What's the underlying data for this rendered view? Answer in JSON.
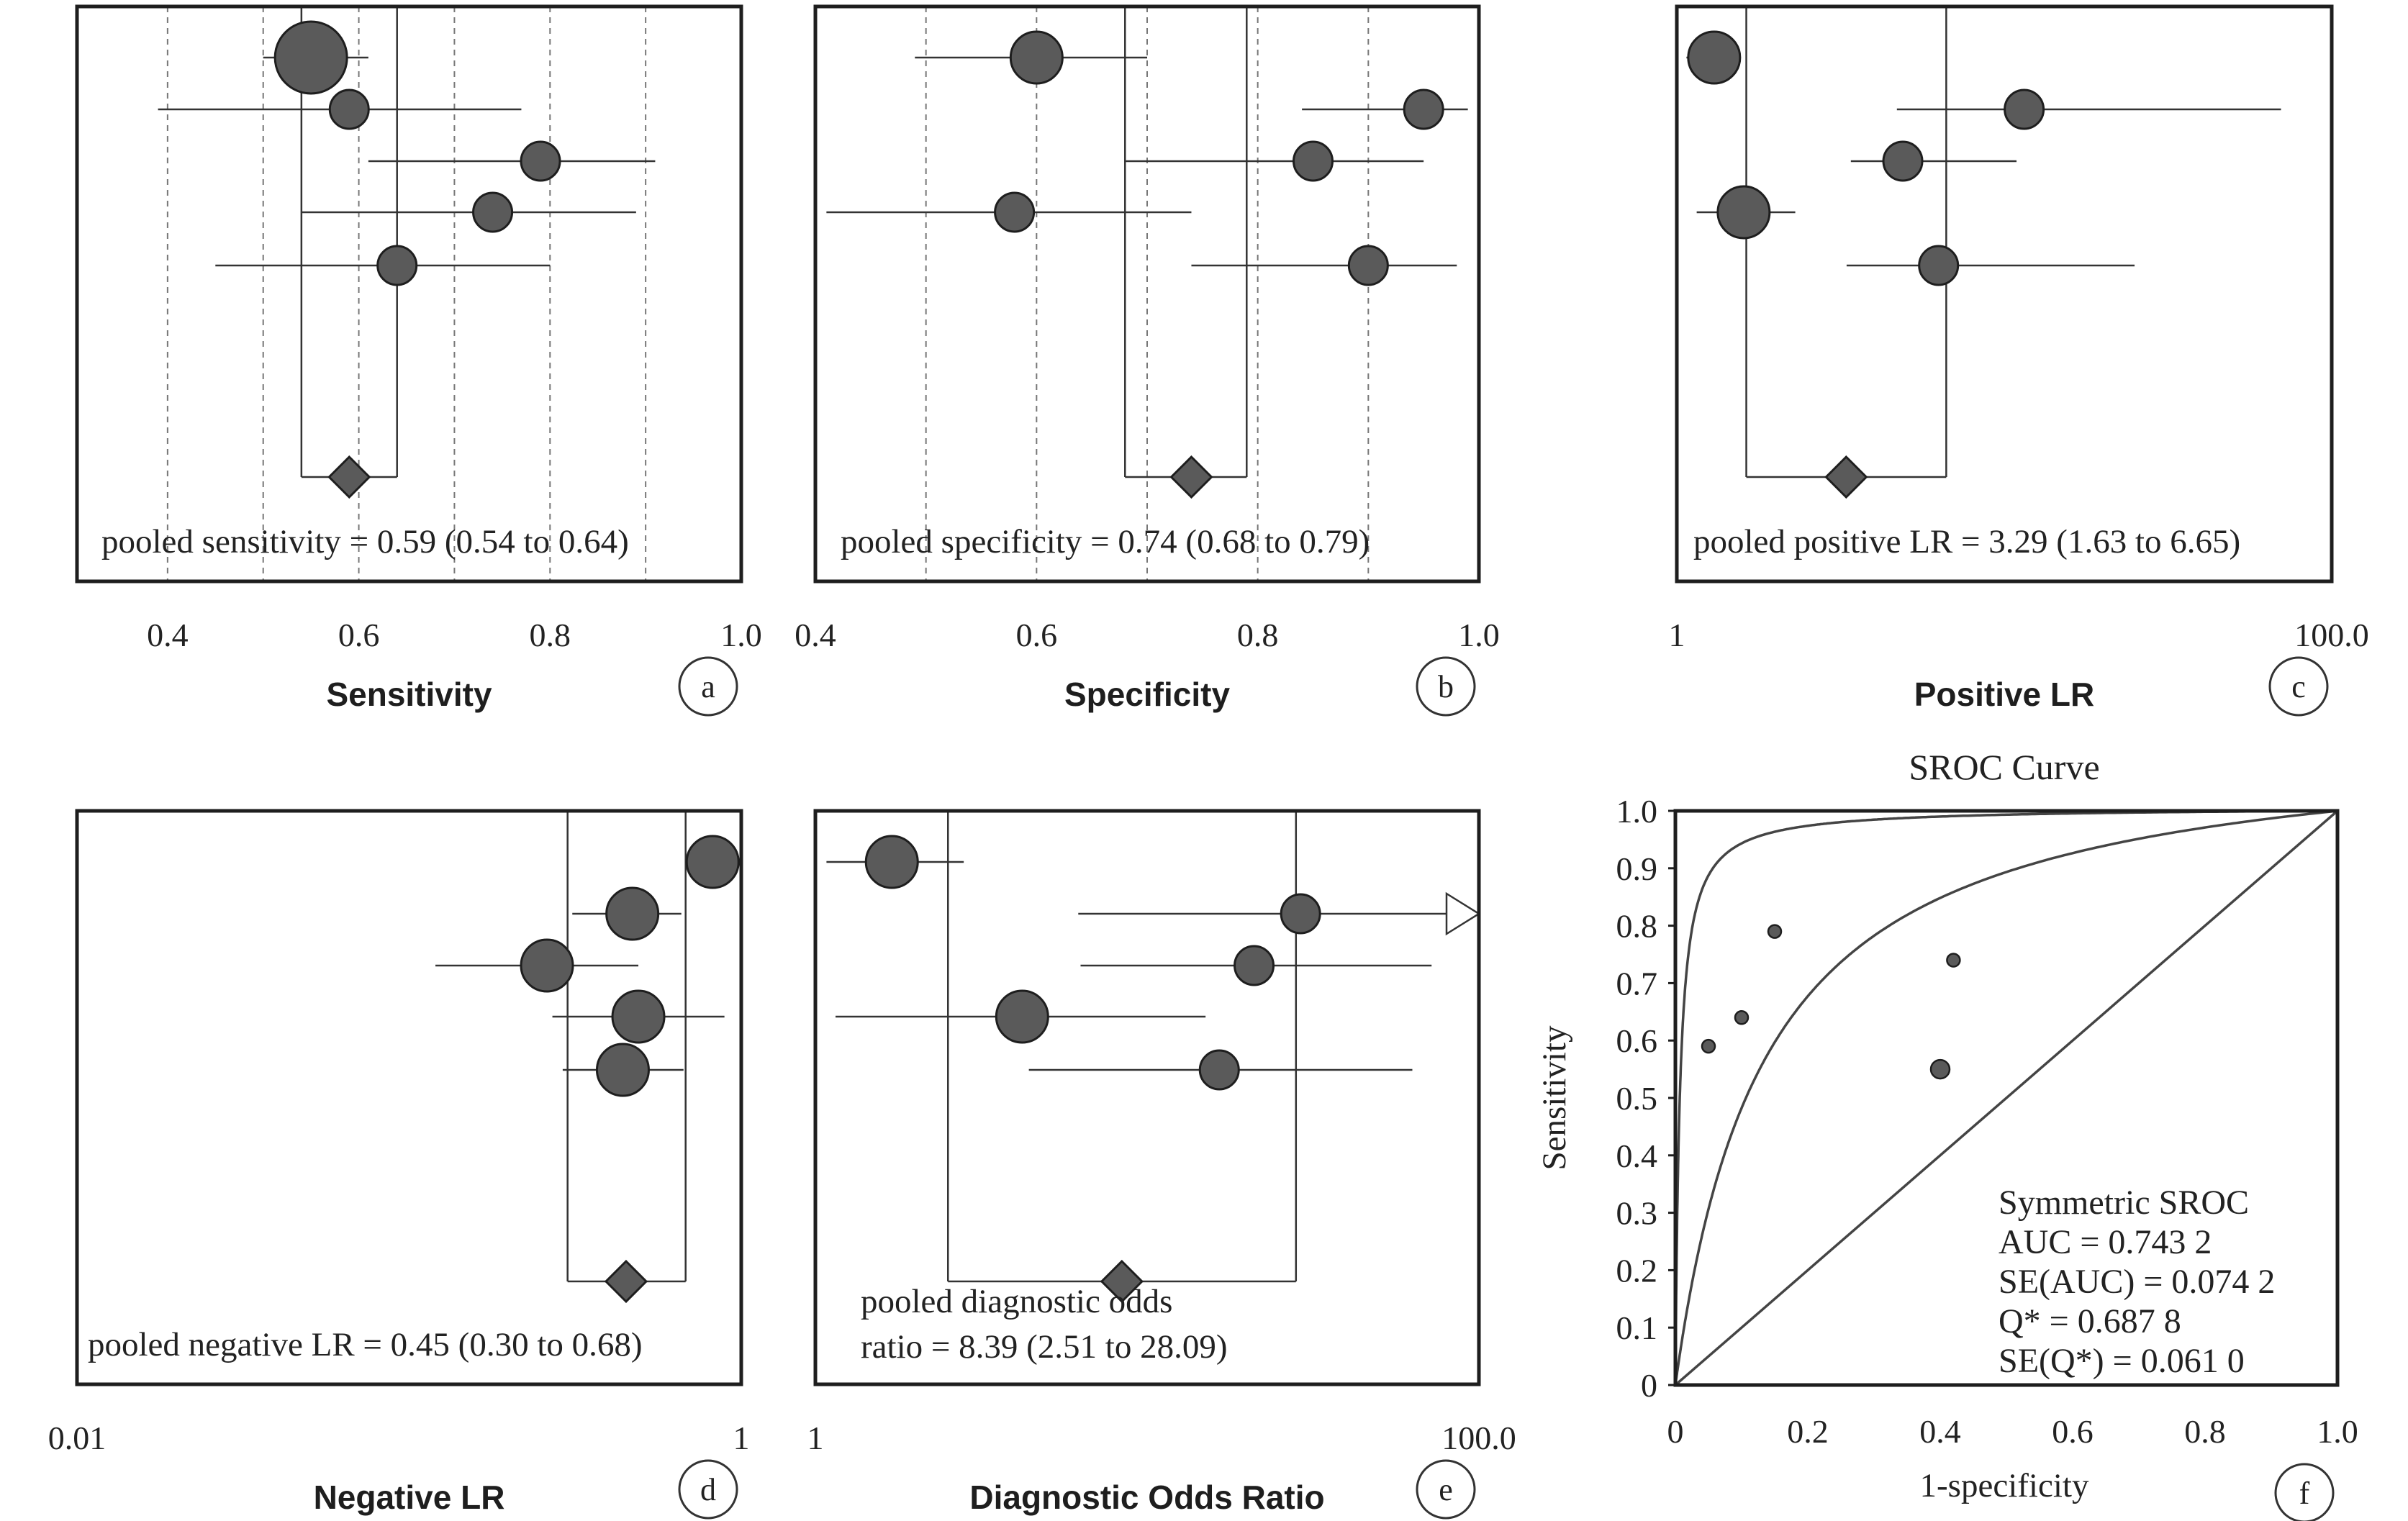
{
  "chart_data": [
    {
      "id": "a",
      "type": "forest",
      "panel_letter": "a",
      "xlabel": "Sensitivity",
      "scale": "linear",
      "xlim": [
        0.3,
        1.0
      ],
      "xticks": [
        {
          "value": 0.4,
          "label": "0.4"
        },
        {
          "value": 0.6,
          "label": "0.6"
        },
        {
          "value": 0.8,
          "label": "0.8"
        },
        {
          "value": 1.0,
          "label": "1.0"
        }
      ],
      "gridlines": [
        0.4,
        0.5,
        0.6,
        0.7,
        0.8,
        0.9
      ],
      "ci_box": [
        0.54,
        0.64
      ],
      "studies": [
        {
          "est": 0.55,
          "lo": 0.5,
          "hi": 0.61,
          "weight": 3
        },
        {
          "est": 0.59,
          "lo": 0.39,
          "hi": 0.77,
          "weight": 1
        },
        {
          "est": 0.79,
          "lo": 0.61,
          "hi": 0.91,
          "weight": 1
        },
        {
          "est": 0.74,
          "lo": 0.54,
          "hi": 0.89,
          "weight": 1
        },
        {
          "est": 0.64,
          "lo": 0.45,
          "hi": 0.8,
          "weight": 1
        }
      ],
      "pooled": {
        "est": 0.59,
        "lo": 0.54,
        "hi": 0.64
      },
      "pooled_text": "pooled sensitivity = 0.59 (0.54 to 0.64)"
    },
    {
      "id": "b",
      "type": "forest",
      "panel_letter": "b",
      "xlabel": "Specificity",
      "scale": "linear",
      "xlim": [
        0.4,
        1.0
      ],
      "xticks": [
        {
          "value": 0.4,
          "label": "0.4"
        },
        {
          "value": 0.6,
          "label": "0.6"
        },
        {
          "value": 0.8,
          "label": "0.8"
        },
        {
          "value": 1.0,
          "label": "1.0"
        }
      ],
      "gridlines": [
        0.5,
        0.6,
        0.7,
        0.8,
        0.9
      ],
      "ci_box": [
        0.68,
        0.79
      ],
      "studies": [
        {
          "est": 0.6,
          "lo": 0.49,
          "hi": 0.7,
          "weight": 2
        },
        {
          "est": 0.95,
          "lo": 0.84,
          "hi": 0.99,
          "weight": 1
        },
        {
          "est": 0.85,
          "lo": 0.68,
          "hi": 0.95,
          "weight": 1
        },
        {
          "est": 0.58,
          "lo": 0.41,
          "hi": 0.74,
          "weight": 1
        },
        {
          "est": 0.9,
          "lo": 0.74,
          "hi": 0.98,
          "weight": 1
        }
      ],
      "pooled": {
        "est": 0.74,
        "lo": 0.68,
        "hi": 0.79
      },
      "pooled_text": "pooled specificity = 0.74 (0.68 to 0.79)"
    },
    {
      "id": "c",
      "type": "forest",
      "panel_letter": "c",
      "xlabel": "Positive LR",
      "scale": "log",
      "xlim": [
        1,
        100
      ],
      "xticks": [
        {
          "value": 1,
          "label": "1"
        },
        {
          "value": 100,
          "label": "100.0"
        }
      ],
      "gridlines": [],
      "ci_box": [
        1.63,
        6.65
      ],
      "studies": [
        {
          "est": 1.3,
          "lo": 1.07,
          "hi": 1.55,
          "weight": 2
        },
        {
          "est": 11.5,
          "lo": 4.7,
          "hi": 70.0,
          "weight": 1
        },
        {
          "est": 4.9,
          "lo": 3.4,
          "hi": 10.9,
          "weight": 1
        },
        {
          "est": 1.6,
          "lo": 1.15,
          "hi": 2.3,
          "weight": 2
        },
        {
          "est": 6.3,
          "lo": 3.3,
          "hi": 25.0,
          "weight": 1
        }
      ],
      "pooled": {
        "est": 3.29,
        "lo": 1.63,
        "hi": 6.65
      },
      "pooled_text": "pooled positive LR = 3.29 (1.63 to 6.65)"
    },
    {
      "id": "d",
      "type": "forest",
      "panel_letter": "d",
      "xlabel": "Negative LR",
      "scale": "log",
      "xlim": [
        0.01,
        1
      ],
      "xticks": [
        {
          "value": 0.01,
          "label": "0.01"
        },
        {
          "value": 1,
          "label": "1"
        }
      ],
      "gridlines": [],
      "ci_box": [
        0.3,
        0.68
      ],
      "studies": [
        {
          "est": 0.82,
          "lo": 0.75,
          "hi": 0.9,
          "weight": 2
        },
        {
          "est": 0.47,
          "lo": 0.31,
          "hi": 0.66,
          "weight": 2
        },
        {
          "est": 0.26,
          "lo": 0.12,
          "hi": 0.49,
          "weight": 2
        },
        {
          "est": 0.49,
          "lo": 0.27,
          "hi": 0.89,
          "weight": 2
        },
        {
          "est": 0.44,
          "lo": 0.29,
          "hi": 0.67,
          "weight": 2
        }
      ],
      "pooled": {
        "est": 0.45,
        "lo": 0.3,
        "hi": 0.68
      },
      "pooled_text": "pooled negative LR = 0.45 (0.30 to 0.68)"
    },
    {
      "id": "e",
      "type": "forest",
      "panel_letter": "e",
      "xlabel": "Diagnostic Odds Ratio",
      "scale": "log",
      "xlim": [
        1,
        100
      ],
      "xticks": [
        {
          "value": 1,
          "label": "1"
        },
        {
          "value": 100,
          "label": "100.0"
        }
      ],
      "gridlines": [],
      "ci_box": [
        2.51,
        28.09
      ],
      "studies": [
        {
          "est": 1.7,
          "lo": 1.08,
          "hi": 2.8,
          "weight": 2
        },
        {
          "est": 29.0,
          "lo": 6.2,
          "hi": 100.0,
          "weight": 1,
          "arrow": true
        },
        {
          "est": 21.0,
          "lo": 6.3,
          "hi": 72.0,
          "weight": 1
        },
        {
          "est": 4.2,
          "lo": 1.15,
          "hi": 15.0,
          "weight": 2
        },
        {
          "est": 16.5,
          "lo": 4.4,
          "hi": 63.0,
          "weight": 1
        }
      ],
      "pooled": {
        "est": 8.39,
        "lo": 2.51,
        "hi": 28.09
      },
      "pooled_text": [
        "pooled diagnostic odds",
        "ratio = 8.39 (2.51 to 28.09)"
      ]
    },
    {
      "id": "f",
      "type": "sroc",
      "panel_letter": "f",
      "title": "SROC Curve",
      "xlabel": "1-specificity",
      "ylabel": "Sensitivity",
      "xlim": [
        0,
        1
      ],
      "ylim": [
        0,
        1
      ],
      "xticks": [
        {
          "value": 0,
          "label": "0"
        },
        {
          "value": 0.2,
          "label": "0.2"
        },
        {
          "value": 0.4,
          "label": "0.4"
        },
        {
          "value": 0.6,
          "label": "0.6"
        },
        {
          "value": 0.8,
          "label": "0.8"
        },
        {
          "value": 1.0,
          "label": "1.0"
        }
      ],
      "yticks": [
        {
          "value": 0,
          "label": "0"
        },
        {
          "value": 0.1,
          "label": "0.1"
        },
        {
          "value": 0.2,
          "label": "0.2"
        },
        {
          "value": 0.3,
          "label": "0.3"
        },
        {
          "value": 0.4,
          "label": "0.4"
        },
        {
          "value": 0.5,
          "label": "0.5"
        },
        {
          "value": 0.6,
          "label": "0.6"
        },
        {
          "value": 0.7,
          "label": "0.7"
        },
        {
          "value": 0.8,
          "label": "0.8"
        },
        {
          "value": 0.9,
          "label": "0.9"
        },
        {
          "value": 1.0,
          "label": "1.0"
        }
      ],
      "points": [
        {
          "x": 0.05,
          "y": 0.59,
          "size": 1
        },
        {
          "x": 0.1,
          "y": 0.64,
          "size": 1
        },
        {
          "x": 0.15,
          "y": 0.79,
          "size": 1
        },
        {
          "x": 0.42,
          "y": 0.74,
          "size": 1
        },
        {
          "x": 0.4,
          "y": 0.55,
          "size": 2
        }
      ],
      "curves": [
        {
          "kind": "sroc",
          "dor": 8.39
        },
        {
          "kind": "sroc",
          "dor": 150
        },
        {
          "kind": "diagonal"
        }
      ],
      "stats_text": [
        "Symmetric SROC",
        "AUC = 0.743 2",
        "SE(AUC) = 0.074 2",
        "Q* = 0.687 8",
        "SE(Q*) = 0.061 0"
      ]
    }
  ]
}
